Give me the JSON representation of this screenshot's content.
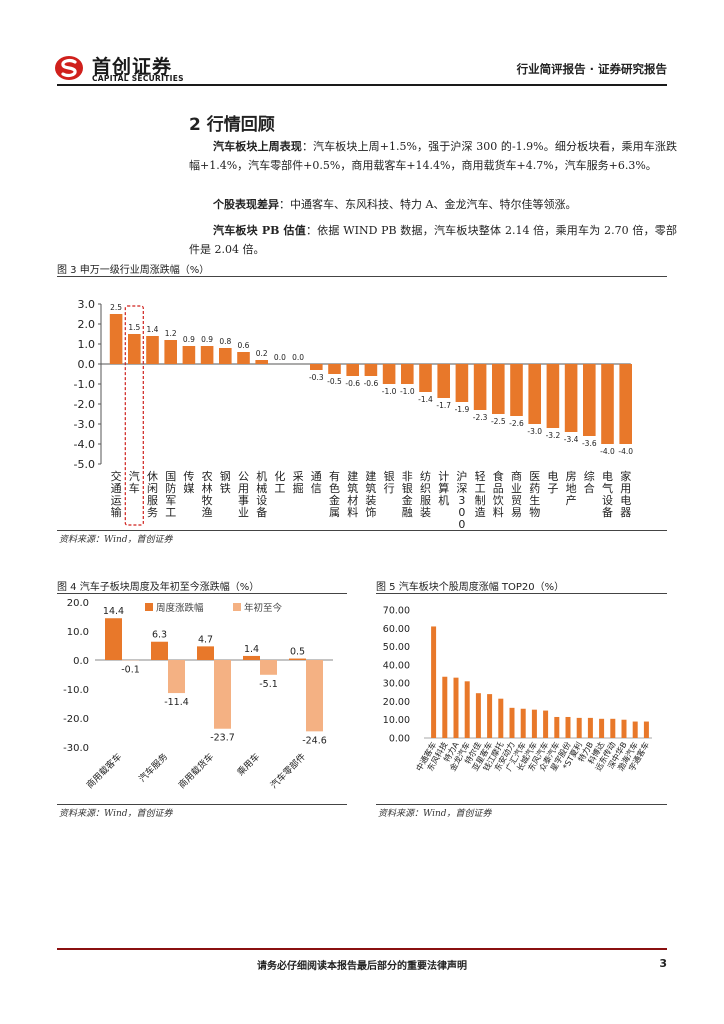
{
  "header": {
    "logo_cn": "首创证券",
    "logo_en": "CAPITAL SECURITIES",
    "report_type": "行业简评报告 · 证券研究报告"
  },
  "section": {
    "title": "2 行情回顾",
    "p1_label": "汽车板块上周表现",
    "p1_text": "：汽车板块上周+1.5%，强于沪深 300 的-1.9%。细分板块看，乘用车涨跌幅+1.4%，汽车零部件+0.5%，商用载客车+14.4%，商用载货车+4.7%，汽车服务+6.3%。",
    "p2_label": "个股表现差异",
    "p2_text": "：中通客车、东风科技、特力 A、金龙汽车、特尔佳等领涨。",
    "p3_label": "汽车板块 PB 估值",
    "p3_text": "：依据 WIND PB 数据，汽车板块整体 2.14 倍，乘用车为 2.70 倍，零部件是 2.04 倍。"
  },
  "fig3": {
    "title": "图 3 申万一级行业周涨跌幅（%）",
    "source": "资料来源：Wind，首创证券"
  },
  "fig4": {
    "title": "图 4 汽车子板块周度及年初至今涨跌幅（%）",
    "source": "资料来源：Wind，首创证券"
  },
  "fig5": {
    "title": "图 5 汽车板块个股周度涨幅 TOP20（%）",
    "source": "资料来源：Wind，首创证券"
  },
  "footer": {
    "disclaimer": "请务必仔细阅读本报告最后部分的重要法律声明",
    "page": "3"
  },
  "colors": {
    "bar": "#E8782A",
    "bar_light": "#F4B183",
    "footer_rule": "#8A1010",
    "logo_red": "#D0201C"
  },
  "chart_data": [
    {
      "id": "fig3",
      "type": "bar",
      "categories": [
        "交通运输",
        "汽车",
        "休闲服务",
        "国防军工",
        "传媒",
        "农林牧渔",
        "钢铁",
        "公用事业",
        "机械设备",
        "化工",
        "采掘",
        "通信",
        "有色金属",
        "建筑材料",
        "建筑装饰",
        "银行",
        "非银金融",
        "纺织服装",
        "计算机",
        "沪深300",
        "轻工制造",
        "食品饮料",
        "商业贸易",
        "医药生物",
        "电子",
        "房地产",
        "综合",
        "电气设备",
        "家用电器"
      ],
      "values": [
        2.5,
        1.5,
        1.4,
        1.2,
        0.9,
        0.9,
        0.8,
        0.6,
        0.2,
        0.0,
        0.0,
        -0.3,
        -0.5,
        -0.6,
        -0.6,
        -1.0,
        -1.0,
        -1.4,
        -1.7,
        -1.9,
        -2.3,
        -2.5,
        -2.6,
        -3.0,
        -3.2,
        -3.4,
        -3.6,
        -4.0,
        -4.0
      ],
      "value_labels": [
        "2.5",
        "1.5",
        "1.4",
        "1.2",
        "0.9",
        "0.9",
        "0.8",
        "0.6",
        "0.2",
        "0.0",
        "0.0",
        "-0.3",
        "-0.5",
        "-0.6",
        "-0.6",
        "-1.0",
        "-1.0",
        "-1.4",
        "-1.7",
        "-1.9",
        "-2.3",
        "-2.5",
        "-2.6",
        "-3.0",
        "-3.2",
        "-3.4",
        "-3.6",
        "-4.0",
        "-4.0"
      ],
      "ylim": [
        -5.0,
        3.0
      ],
      "yticks": [
        "3.0",
        "2.0",
        "1.0",
        "0.0",
        "-1.0",
        "-2.0",
        "-3.0",
        "-4.0",
        "-5.0"
      ],
      "highlight": "汽车",
      "grid": false
    },
    {
      "id": "fig4",
      "type": "bar",
      "categories": [
        "商用载客车",
        "汽车服务",
        "商用载货车",
        "乘用车",
        "汽车零部件"
      ],
      "series": [
        {
          "name": "周度涨跌幅",
          "values": [
            14.4,
            6.3,
            4.7,
            1.4,
            0.5
          ],
          "labels": [
            "14.4",
            "6.3",
            "4.7",
            "1.4",
            "0.5"
          ]
        },
        {
          "name": "年初至今",
          "values": [
            -0.1,
            -11.4,
            -23.7,
            -5.1,
            -24.6
          ],
          "labels": [
            "-0.1",
            "-11.4",
            "-23.7",
            "-5.1",
            "-24.6"
          ]
        }
      ],
      "ylim": [
        -30.0,
        20.0
      ],
      "yticks": [
        "20.0",
        "10.0",
        "0.0",
        "-10.0",
        "-20.0",
        "-30.0"
      ],
      "legend": "top"
    },
    {
      "id": "fig5",
      "type": "bar",
      "categories": [
        "中通客车",
        "东风科技",
        "特力A",
        "金龙汽车",
        "特尔佳",
        "亚星客车",
        "钱江摩托",
        "东安动力",
        "广汇汽车",
        "长城汽车",
        "东风汽车",
        "众泰汽车",
        "星宇股份",
        "*ST夏利",
        "特力B",
        "科博达",
        "远东传动",
        "深中华B",
        "渤海汽车",
        "宇通客车"
      ],
      "values": [
        61.0,
        33.5,
        33.0,
        31.0,
        24.5,
        24.0,
        21.5,
        16.5,
        16.0,
        15.5,
        15.0,
        11.5,
        11.5,
        11.0,
        11.0,
        10.5,
        10.5,
        10.0,
        9.0,
        9.0
      ],
      "ylim": [
        0,
        70
      ],
      "yticks": [
        "70.00",
        "60.00",
        "50.00",
        "40.00",
        "30.00",
        "20.00",
        "10.00",
        "0.00"
      ],
      "grid": false
    }
  ]
}
